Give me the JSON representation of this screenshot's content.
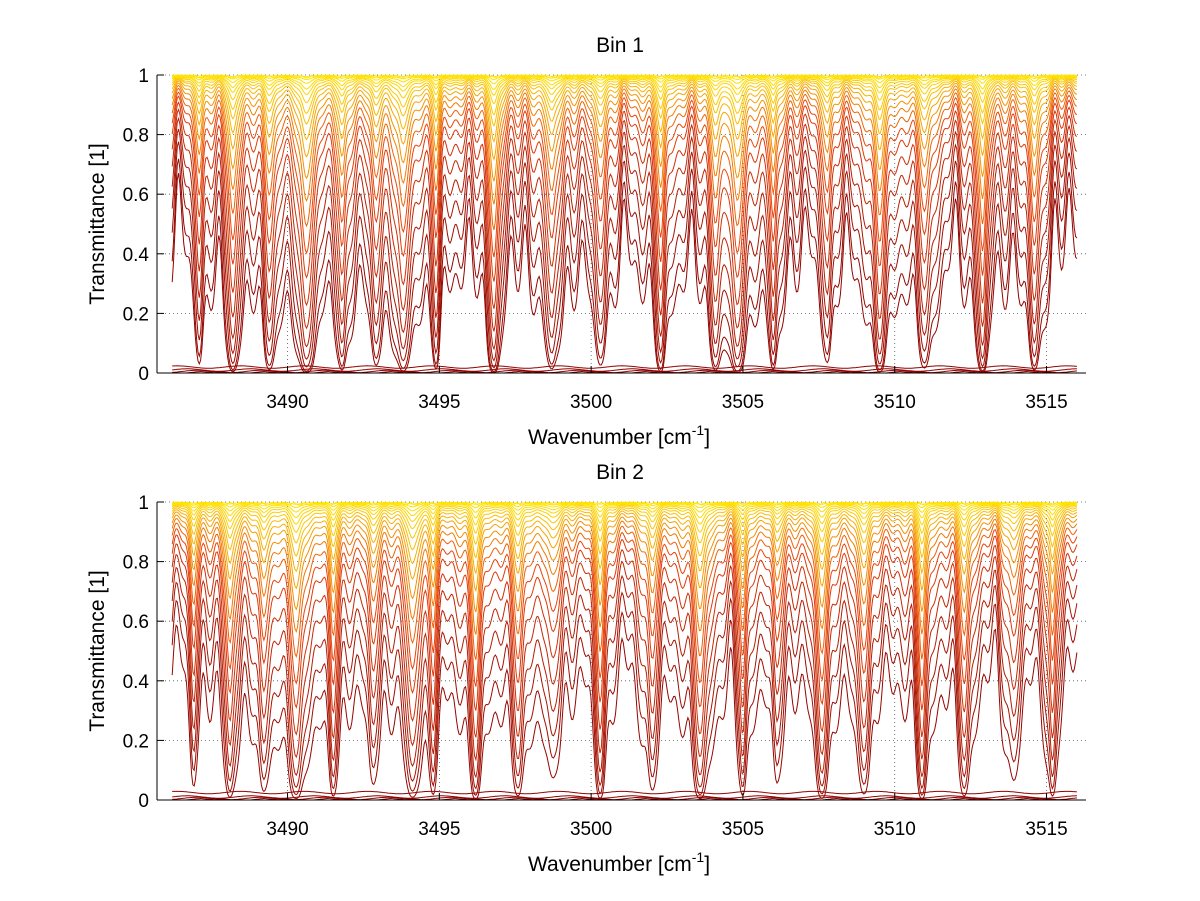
{
  "chart_data": [
    {
      "type": "line",
      "title": "Bin 1",
      "xlabel": "Wavenumber [cm",
      "xlabel_sup": "-1",
      "xlabel_end": "]",
      "ylabel": "Transmittance [1]",
      "xlim": [
        3485.7,
        3516.3
      ],
      "ylim": [
        0,
        1
      ],
      "xticks": [
        "3490",
        "3495",
        "3500",
        "3505",
        "3510",
        "3515"
      ],
      "yticks": [
        "0",
        "0.2",
        "0.4",
        "0.6",
        "0.8",
        "1"
      ],
      "grid": true,
      "legend": "none",
      "line_centers": [
        3487.1,
        3488.2,
        3489.4,
        3490.6,
        3491.8,
        3492.9,
        3493.8,
        3494.9,
        3496.8,
        3498.7,
        3500.3,
        3502.3,
        3504.1,
        3504.8,
        3506.0,
        3507.8,
        3509.5,
        3511.0,
        3512.9,
        3514.6
      ],
      "series_levels": [
        0.0,
        0.002,
        0.005,
        0.01,
        0.02,
        0.04,
        0.07,
        0.13,
        0.2,
        0.28,
        0.37,
        0.46,
        0.55,
        0.62,
        0.69,
        0.75,
        0.8,
        0.845,
        0.88,
        0.91,
        0.93,
        0.95,
        0.965,
        0.975,
        0.985,
        0.992,
        0.997,
        1.0
      ],
      "color_low": "#8b0000",
      "color_mid": "#e8400a",
      "color_high": "#ffe600"
    },
    {
      "type": "line",
      "title": "Bin 2",
      "xlabel": "Wavenumber [cm",
      "xlabel_sup": "-1",
      "xlabel_end": "]",
      "ylabel": "Transmittance [1]",
      "xlim": [
        3485.7,
        3516.3
      ],
      "ylim": [
        0,
        1
      ],
      "xticks": [
        "3490",
        "3495",
        "3500",
        "3505",
        "3510",
        "3515"
      ],
      "yticks": [
        "0",
        "0.2",
        "0.4",
        "0.6",
        "0.8",
        "1"
      ],
      "grid": true,
      "legend": "none",
      "line_centers": [
        3486.9,
        3488.1,
        3489.2,
        3490.3,
        3491.5,
        3492.8,
        3494.1,
        3494.8,
        3496.2,
        3497.6,
        3498.7,
        3500.3,
        3502.0,
        3503.6,
        3505.0,
        3506.1,
        3507.6,
        3509.0,
        3510.9,
        3512.3,
        3513.9,
        3515.2
      ],
      "series_levels": [
        0.0,
        0.002,
        0.005,
        0.01,
        0.025,
        0.06,
        0.12,
        0.19,
        0.27,
        0.36,
        0.45,
        0.54,
        0.61,
        0.68,
        0.74,
        0.79,
        0.835,
        0.87,
        0.9,
        0.925,
        0.945,
        0.96,
        0.972,
        0.982,
        0.99,
        0.996,
        1.0
      ],
      "color_low": "#8b0000",
      "color_mid": "#e8400a",
      "color_high": "#ffe600"
    }
  ]
}
